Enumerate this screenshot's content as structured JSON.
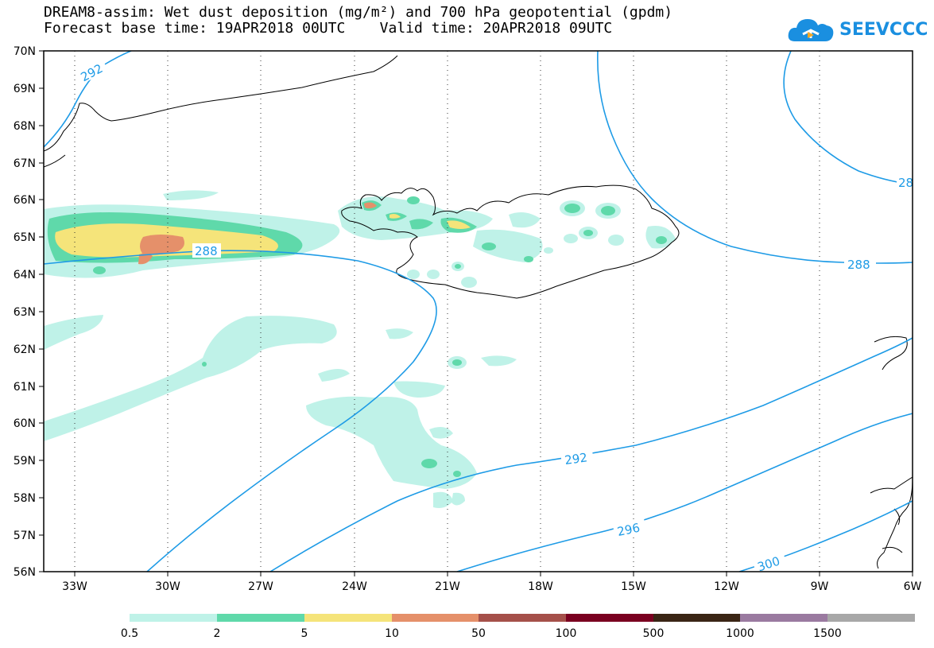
{
  "title": {
    "line1": "DREAM8-assim: Wet dust deposition (mg/m²) and 700 hPa geopotential (gpdm)",
    "line2": "Forecast base time: 19APR2018 00UTC    Valid time: 20APR2018 09UTC"
  },
  "logo": {
    "text": "SEEVCCC",
    "icon": "cloud-icon"
  },
  "map": {
    "lat_labels": [
      "70N",
      "69N",
      "68N",
      "67N",
      "66N",
      "65N",
      "64N",
      "63N",
      "62N",
      "61N",
      "60N",
      "59N",
      "58N",
      "57N",
      "56N"
    ],
    "lon_labels": [
      "33W",
      "30W",
      "27W",
      "24W",
      "21W",
      "18W",
      "15W",
      "12W",
      "9W",
      "6W"
    ],
    "contour_labels": [
      "292",
      "288",
      "288",
      "292",
      "296",
      "300",
      "28"
    ],
    "contour_color": "#1e9be6",
    "coastline_color": "#000000"
  },
  "colorbar": {
    "labels": [
      "0.5",
      "2",
      "5",
      "10",
      "50",
      "100",
      "500",
      "1000",
      "1500"
    ],
    "colors": [
      "#bff2e8",
      "#5fd9aa",
      "#f5e47a",
      "#e5906a",
      "#a5504a",
      "#7a0020",
      "#3a2515",
      "#9a7aa0",
      "#a8a8a8"
    ]
  }
}
